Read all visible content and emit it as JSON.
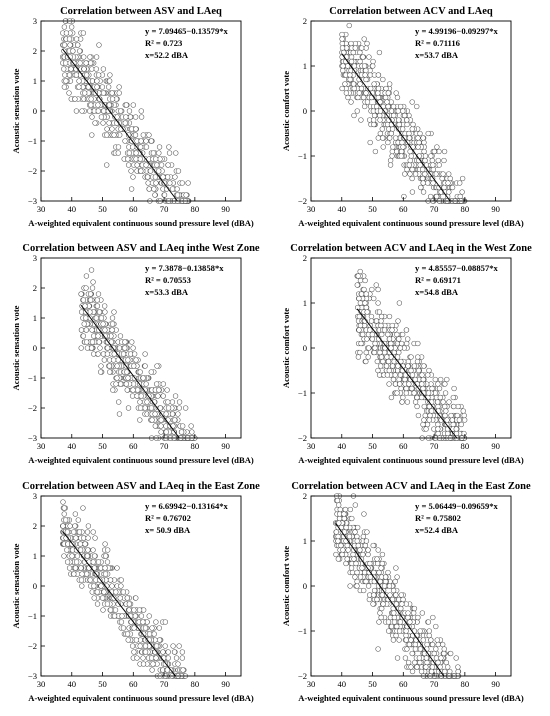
{
  "chart_data": [
    {
      "type": "scatter",
      "title": "Correlation between ASV and LAeq",
      "xlabel": "A-weighted equivalent continuous sound pressure level (dBA)",
      "ylabel": "Acoustic sensation vote",
      "xlim": [
        30,
        95
      ],
      "ylim": [
        -3,
        3
      ],
      "xticks": [
        30,
        40,
        50,
        60,
        70,
        80,
        90
      ],
      "yticks": [
        -3,
        -2,
        -1,
        0,
        1,
        2,
        3
      ],
      "annotation": [
        "y = 7.09465−0.13579*x",
        "R² = 0.723",
        "x=52.2 dBA"
      ],
      "fit": {
        "intercept": 7.09465,
        "slope": -0.13579
      },
      "x_range": [
        37,
        78
      ],
      "spread": 0.55,
      "grid": false
    },
    {
      "type": "scatter",
      "title": "Correlation between ACV and LAeq",
      "xlabel": "A-weighted equivalent continuous sound pressure level (dBA)",
      "ylabel": "Acoustic comfort vote",
      "xlim": [
        30,
        95
      ],
      "ylim": [
        -2,
        2
      ],
      "xticks": [
        30,
        40,
        50,
        60,
        70,
        80,
        90
      ],
      "yticks": [
        -2,
        -1,
        0,
        1,
        2
      ],
      "annotation": [
        "y = 4.99196−0.09297*x",
        "R² = 0.71116",
        "x=53.7 dBA"
      ],
      "fit": {
        "intercept": 4.99196,
        "slope": -0.09297
      },
      "x_range": [
        40,
        80
      ],
      "spread": 0.42,
      "grid": false
    },
    {
      "type": "scatter",
      "title": "Correlation between ASV and LAeq inthe West Zone",
      "xlabel": "A-weighted equivalent continuous sound pressure level (dBA)",
      "ylabel": "Acoustic sensation vote",
      "xlim": [
        30,
        95
      ],
      "ylim": [
        -3,
        3
      ],
      "xticks": [
        30,
        40,
        50,
        60,
        70,
        80,
        90
      ],
      "yticks": [
        -3,
        -2,
        -1,
        0,
        1,
        2,
        3
      ],
      "annotation": [
        "y = 7.3878−0.13858*x",
        "R² = 0.70553",
        "x=53.3 dBA"
      ],
      "fit": {
        "intercept": 7.3878,
        "slope": -0.13858
      },
      "x_range": [
        43,
        80
      ],
      "spread": 0.55,
      "grid": false
    },
    {
      "type": "scatter",
      "title": "Correlation between ACV and LAeq in the West Zone",
      "xlabel": "A-weighted equivalent continuous sound pressure level (dBA)",
      "ylabel": "Acoustic comfort vote",
      "xlim": [
        30,
        95
      ],
      "ylim": [
        -2,
        2
      ],
      "xticks": [
        30,
        40,
        50,
        60,
        70,
        80,
        90
      ],
      "yticks": [
        -2,
        -1,
        0,
        1,
        2
      ],
      "annotation": [
        "y = 4.85557−0.08857*x",
        "R² = 0.69171",
        "x=54.8 dBA"
      ],
      "fit": {
        "intercept": 4.85557,
        "slope": -0.08857
      },
      "x_range": [
        45,
        80
      ],
      "spread": 0.42,
      "grid": false
    },
    {
      "type": "scatter",
      "title": "Correlation between ASV and LAeq in the East Zone",
      "xlabel": "A-weighted equivalent continuous sound pressure level (dBA)",
      "ylabel": "Acoustic sensation vote",
      "xlim": [
        30,
        95
      ],
      "ylim": [
        -3,
        3
      ],
      "xticks": [
        30,
        40,
        50,
        60,
        70,
        80,
        90
      ],
      "yticks": [
        -3,
        -2,
        -1,
        0,
        1,
        2,
        3
      ],
      "annotation": [
        "y = 6.69942−0.13164*x",
        "R² = 0.76702",
        "x= 50.9 dBA"
      ],
      "fit": {
        "intercept": 6.69942,
        "slope": -0.13164
      },
      "x_range": [
        37,
        77
      ],
      "spread": 0.5,
      "grid": false
    },
    {
      "type": "scatter",
      "title": "Correlation between ACV and LAeq in the East Zone",
      "xlabel": "A-weighted equivalent continuous sound pressure level (dBA)",
      "ylabel": "Acoustic comfort vote",
      "xlim": [
        30,
        95
      ],
      "ylim": [
        -2,
        2
      ],
      "xticks": [
        30,
        40,
        50,
        60,
        70,
        80,
        90
      ],
      "yticks": [
        -2,
        -1,
        0,
        1,
        2
      ],
      "annotation": [
        "y = 5.06449−0.09659*x",
        "R² = 0.75802",
        "x=52.4 dBA"
      ],
      "fit": {
        "intercept": 5.06449,
        "slope": -0.09659
      },
      "x_range": [
        38,
        78
      ],
      "spread": 0.4,
      "grid": false
    }
  ]
}
